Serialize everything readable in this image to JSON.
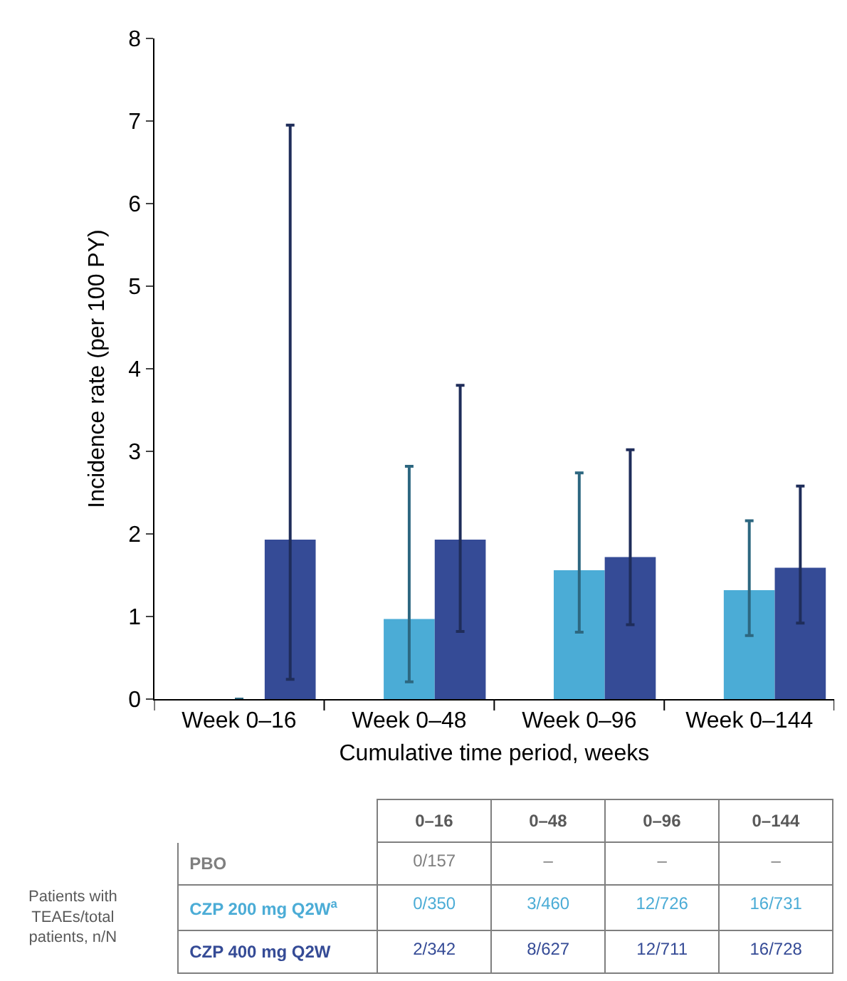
{
  "chart_data": {
    "type": "bar",
    "xlabel": "Cumulative time period, weeks",
    "ylabel": "Incidence rate (per 100 PY)",
    "categories": [
      "Week 0–16",
      "Week 0–48",
      "Week 0–96",
      "Week 0–144"
    ],
    "series": [
      {
        "name": "PBO",
        "color": "#7f7f7f",
        "values": [
          0,
          null,
          null,
          null
        ]
      },
      {
        "name": "CZP 200 mg Q2W$^{a}$",
        "color": "#4bacd6",
        "values": [
          0,
          0.97,
          1.56,
          1.32
        ],
        "errors": [
          null,
          [
            0.21,
            2.82
          ],
          [
            0.81,
            2.74
          ],
          [
            0.77,
            2.16
          ]
        ]
      },
      {
        "name": "CZP 400 mg Q2W",
        "color": "#354b96",
        "values": [
          1.93,
          1.93,
          1.72,
          1.59
        ],
        "errors": [
          [
            0.24,
            6.95
          ],
          [
            0.82,
            3.8
          ],
          [
            0.9,
            3.02
          ],
          [
            0.92,
            2.58
          ]
        ]
      }
    ],
    "ylim": [
      0,
      8
    ],
    "yticks": [
      0,
      1,
      2,
      3,
      4,
      5,
      6,
      7,
      8
    ],
    "legend": false,
    "annotations": [
      "Patients with TEAEs/total patients, n/N",
      "0–16",
      "0–48",
      "0–96",
      "0–144",
      "0/157",
      "–",
      "–",
      "–",
      "0/350",
      "3/460",
      "12/726",
      "16/731",
      "2/342",
      "8/627",
      "12/711",
      "16/728"
    ]
  }
}
